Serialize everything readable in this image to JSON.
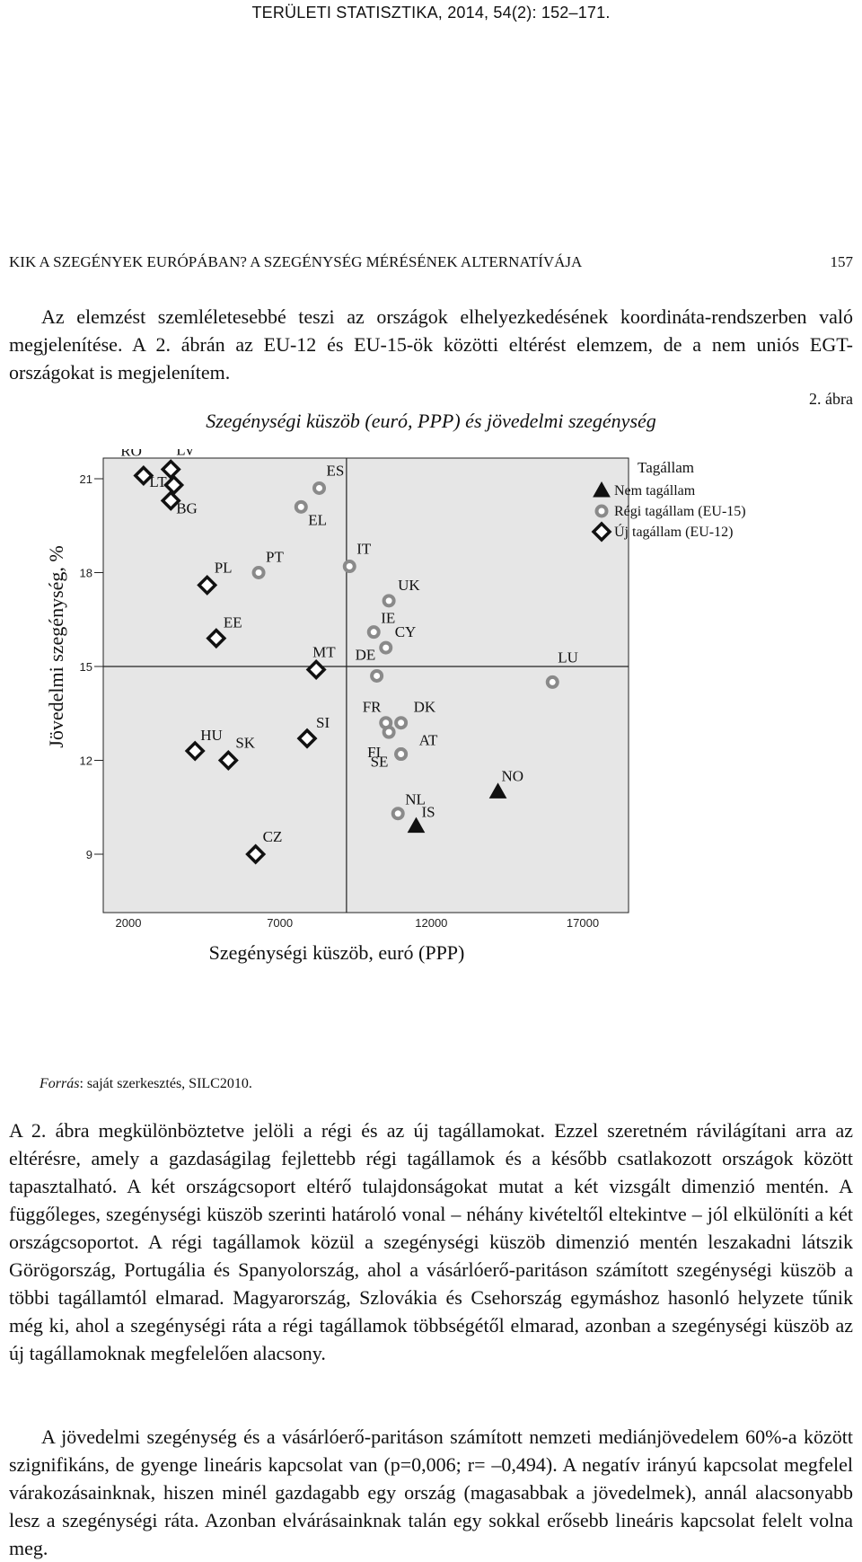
{
  "running_header": "TERÜLETI STATISZTIKA, 2014, 54(2): 152–171.",
  "section_header": {
    "title": "KIK A SZEGÉNYEK EURÓPÁBAN? A SZEGÉNYSÉG MÉRÉSÉNEK ALTERNATÍVÁJA",
    "page": "157"
  },
  "intro_paragraph": "Az elemzést szemléletesebbé teszi az országok elhelyezkedésének koordináta-rendszerben való megjelenítése. A 2. ábrán az EU-12 és EU-15-ök közötti eltérést elemzem, de a nem uniós EGT-országokat is megjelenítem.",
  "figure": {
    "label": "2. ábra",
    "title": "Szegénységi küszöb (euró, PPP) és jövedelmi szegénység",
    "source_prefix": "Forrás",
    "source_rest": ": saját szerkesztés, SILC2010."
  },
  "chart_data": {
    "type": "scatter",
    "xlabel": "Szegénységi küszöb, euró (PPP)",
    "ylabel": "Jövedelmi szegénység, %",
    "xlim": [
      2000,
      20500
    ],
    "ylim": [
      6.6,
      22.5
    ],
    "xticks": [
      "2000",
      "7000",
      "12000",
      "17000"
    ],
    "yticks": [
      "9",
      "12",
      "15",
      "18",
      "21"
    ],
    "reference_lines": {
      "x": 9200,
      "y": 15
    },
    "legend": {
      "title": "Tagállam",
      "position": "top-right",
      "items": [
        "Nem tagállam",
        "Régi tagállam (EU-15)",
        "Új tagállam (EU-12)"
      ]
    },
    "series": [
      {
        "name": "Nem tagállam",
        "marker": "triangle",
        "color": "#111111",
        "points": [
          {
            "label": "NO",
            "x": 14200,
            "y": 11.0
          },
          {
            "label": "IS",
            "x": 11500,
            "y": 9.9
          }
        ]
      },
      {
        "name": "Régi tagállam (EU-15)",
        "marker": "ring",
        "color": "#8a8a8a",
        "points": [
          {
            "label": "ES",
            "x": 8300,
            "y": 20.7
          },
          {
            "label": "EL",
            "x": 7700,
            "y": 20.1
          },
          {
            "label": "PT",
            "x": 6300,
            "y": 18.0
          },
          {
            "label": "IT",
            "x": 9300,
            "y": 18.2
          },
          {
            "label": "UK",
            "x": 10600,
            "y": 17.1
          },
          {
            "label": "IE",
            "x": 10100,
            "y": 16.1
          },
          {
            "label": "CY",
            "x": 10500,
            "y": 15.6
          },
          {
            "label": "DE",
            "x": 10200,
            "y": 14.7
          },
          {
            "label": "LU",
            "x": 16000,
            "y": 14.5
          },
          {
            "label": "FR",
            "x": 10500,
            "y": 13.2
          },
          {
            "label": "DK",
            "x": 11000,
            "y": 13.2
          },
          {
            "label": "FI",
            "x": 10600,
            "y": 12.9
          },
          {
            "label": "AT",
            "x": 11000,
            "y": 12.2
          },
          {
            "label": "SE",
            "x": 11000,
            "y": 12.2
          },
          {
            "label": "NL",
            "x": 10900,
            "y": 10.3
          }
        ]
      },
      {
        "name": "Új tagállam (EU-12)",
        "marker": "diamond",
        "color": "#111111",
        "points": [
          {
            "label": "RO",
            "x": 2500,
            "y": 21.1
          },
          {
            "label": "LV",
            "x": 3400,
            "y": 21.3
          },
          {
            "label": "LT",
            "x": 3500,
            "y": 20.8
          },
          {
            "label": "BG",
            "x": 3400,
            "y": 20.3
          },
          {
            "label": "PL",
            "x": 4600,
            "y": 17.6
          },
          {
            "label": "EE",
            "x": 4900,
            "y": 15.9
          },
          {
            "label": "MT",
            "x": 8200,
            "y": 14.9
          },
          {
            "label": "SI",
            "x": 7900,
            "y": 12.7
          },
          {
            "label": "HU",
            "x": 4200,
            "y": 12.3
          },
          {
            "label": "SK",
            "x": 5300,
            "y": 12.0
          },
          {
            "label": "CZ",
            "x": 6200,
            "y": 9.0
          }
        ]
      }
    ]
  },
  "body_paragraph_1": "A 2. ábra megkülönböztetve jelöli a régi és az új tagállamokat. Ezzel szeretném rávilágítani arra az eltérésre, amely a gazdaságilag fejlettebb régi tagállamok és a később csatlakozott országok között tapasztalható. A két országcsoport eltérő tulajdonságokat mutat a két vizsgált dimenzió mentén. A függőleges, szegénységi küszöb szerinti határoló vonal – néhány kivételtől eltekintve – jól elkülöníti a két országcsoportot. A régi tagállamok közül a szegénységi küszöb dimenzió mentén leszakadni látszik Görögország, Portugália és Spanyolország, ahol a vásárlóerő-paritáson számított szegénységi küszöb a többi tagállamtól elmarad. Magyarország, Szlovákia és Csehország egymáshoz hasonló helyzete tűnik még ki, ahol a szegénységi ráta a régi tagállamok többségétől elmarad, azonban a szegénységi küszöb az új tagállamoknak megfelelően alacsony.",
  "body_paragraph_2": "A jövedelmi szegénység és a vásárlóerő-paritáson számított nemzeti mediánjövedelem 60%-a között szignifikáns, de gyenge lineáris kapcsolat van (p=0,006; r= –0,494). A negatív irányú kapcsolat megfelel várakozásainknak, hiszen minél gazdagabb egy ország (magasabbak a jövedelmek), annál alacsonyabb lesz a szegénységi ráta. Azonban elvárásainknak talán egy sokkal erősebb lineáris kapcsolat felelt volna meg."
}
